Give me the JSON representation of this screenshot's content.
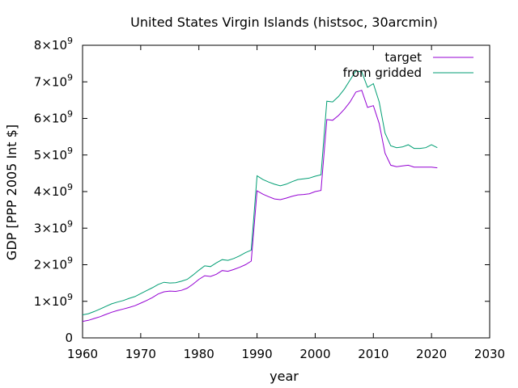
{
  "chart_data": {
    "type": "line",
    "title": "United States Virgin Islands (histsoc, 30arcmin)",
    "xlabel": "year",
    "ylabel": "GDP [PPP 2005 Int $]",
    "xlim": [
      1960,
      2030
    ],
    "ylim": [
      0,
      8000000000
    ],
    "xticks": [
      1960,
      1970,
      1980,
      1990,
      2000,
      2010,
      2020,
      2030
    ],
    "yticks": [
      {
        "value": 0,
        "mant": "0",
        "exp": ""
      },
      {
        "value": 1000000000,
        "mant": "1×10",
        "exp": "9"
      },
      {
        "value": 2000000000,
        "mant": "2×10",
        "exp": "9"
      },
      {
        "value": 3000000000,
        "mant": "3×10",
        "exp": "9"
      },
      {
        "value": 4000000000,
        "mant": "4×10",
        "exp": "9"
      },
      {
        "value": 5000000000,
        "mant": "5×10",
        "exp": "9"
      },
      {
        "value": 6000000000,
        "mant": "6×10",
        "exp": "9"
      },
      {
        "value": 7000000000,
        "mant": "7×10",
        "exp": "9"
      },
      {
        "value": 8000000000,
        "mant": "8×10",
        "exp": "9"
      }
    ],
    "legend_position": "top-right",
    "grid": false,
    "x": [
      1960,
      1961,
      1962,
      1963,
      1964,
      1965,
      1966,
      1967,
      1968,
      1969,
      1970,
      1971,
      1972,
      1973,
      1974,
      1975,
      1976,
      1977,
      1978,
      1979,
      1980,
      1981,
      1982,
      1983,
      1984,
      1985,
      1986,
      1987,
      1988,
      1989,
      1990,
      1991,
      1992,
      1993,
      1994,
      1995,
      1996,
      1997,
      1998,
      1999,
      2000,
      2001,
      2002,
      2003,
      2004,
      2005,
      2006,
      2007,
      2008,
      2009,
      2010,
      2011,
      2012,
      2013,
      2014,
      2015,
      2016,
      2017,
      2018,
      2019,
      2020,
      2021
    ],
    "series": [
      {
        "name": "target",
        "color": "#9400d3",
        "values": [
          0.45,
          0.48,
          0.53,
          0.58,
          0.64,
          0.7,
          0.75,
          0.79,
          0.83,
          0.88,
          0.95,
          1.02,
          1.1,
          1.2,
          1.26,
          1.28,
          1.27,
          1.3,
          1.36,
          1.47,
          1.6,
          1.7,
          1.68,
          1.74,
          1.84,
          1.82,
          1.87,
          1.93,
          2.0,
          2.1,
          4.02,
          3.93,
          3.86,
          3.8,
          3.78,
          3.82,
          3.87,
          3.91,
          3.92,
          3.94,
          4.0,
          4.03,
          5.97,
          5.95,
          6.08,
          6.25,
          6.45,
          6.72,
          6.77,
          6.3,
          6.35,
          5.86,
          5.05,
          4.72,
          4.68,
          4.7,
          4.72,
          4.67,
          4.67,
          4.67,
          4.67,
          4.65
        ]
      },
      {
        "name": "from gridded",
        "color": "#009e73",
        "values": [
          0.63,
          0.66,
          0.72,
          0.79,
          0.86,
          0.93,
          0.98,
          1.02,
          1.08,
          1.13,
          1.21,
          1.29,
          1.37,
          1.46,
          1.52,
          1.5,
          1.51,
          1.55,
          1.6,
          1.72,
          1.85,
          1.97,
          1.95,
          2.05,
          2.14,
          2.12,
          2.17,
          2.24,
          2.33,
          2.4,
          4.43,
          4.33,
          4.26,
          4.2,
          4.16,
          4.2,
          4.27,
          4.33,
          4.35,
          4.37,
          4.42,
          4.46,
          6.47,
          6.45,
          6.6,
          6.8,
          7.05,
          7.3,
          7.27,
          6.85,
          6.95,
          6.45,
          5.6,
          5.25,
          5.2,
          5.22,
          5.28,
          5.18,
          5.18,
          5.2,
          5.28,
          5.2
        ]
      }
    ],
    "values_unit": "1e9"
  }
}
